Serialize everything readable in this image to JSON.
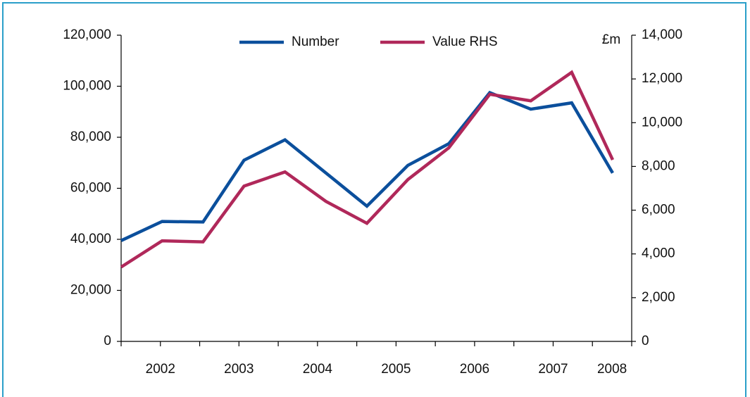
{
  "chart_data": {
    "type": "line",
    "unit_label": "£m",
    "categories": [
      "2002",
      null,
      "2003",
      null,
      "2004",
      null,
      "2005",
      null,
      "2006",
      null,
      "2007",
      null,
      "2008"
    ],
    "series": [
      {
        "name": "Number",
        "color": "#0b4f9c",
        "values": [
          39500,
          47000,
          46800,
          71000,
          79000,
          66000,
          53000,
          69000,
          77500,
          97500,
          91000,
          93500,
          66000
        ]
      },
      {
        "name": "Value RHS",
        "color": "#b0285a",
        "axis": "y2",
        "values": [
          3400,
          4600,
          4550,
          7100,
          7750,
          6400,
          5400,
          7400,
          8850,
          11300,
          11000,
          12300,
          8300
        ]
      }
    ],
    "ylim": [
      0,
      120000
    ],
    "yticks": [
      0,
      {
        "value": 20000,
        "label": "20,000"
      },
      {
        "value": 40000,
        "label": "40,000"
      },
      {
        "value": 60000,
        "label": "60,000"
      },
      {
        "value": 80000,
        "label": "80,000"
      },
      {
        "value": 100000,
        "label": "100,000"
      },
      {
        "value": 120000,
        "label": "120,000"
      }
    ],
    "y2lim": [
      0,
      14000
    ],
    "y2ticks": [
      0,
      {
        "value": 2000,
        "label": "2,000"
      },
      {
        "value": 4000,
        "label": "4,000"
      },
      {
        "value": 6000,
        "label": "6,000"
      },
      {
        "value": 8000,
        "label": "8,000"
      },
      {
        "value": 10000,
        "label": "10,000"
      },
      {
        "value": 12000,
        "label": "12,000"
      },
      {
        "value": 14000,
        "label": "14,000"
      }
    ],
    "legend": "top",
    "grid": false
  }
}
